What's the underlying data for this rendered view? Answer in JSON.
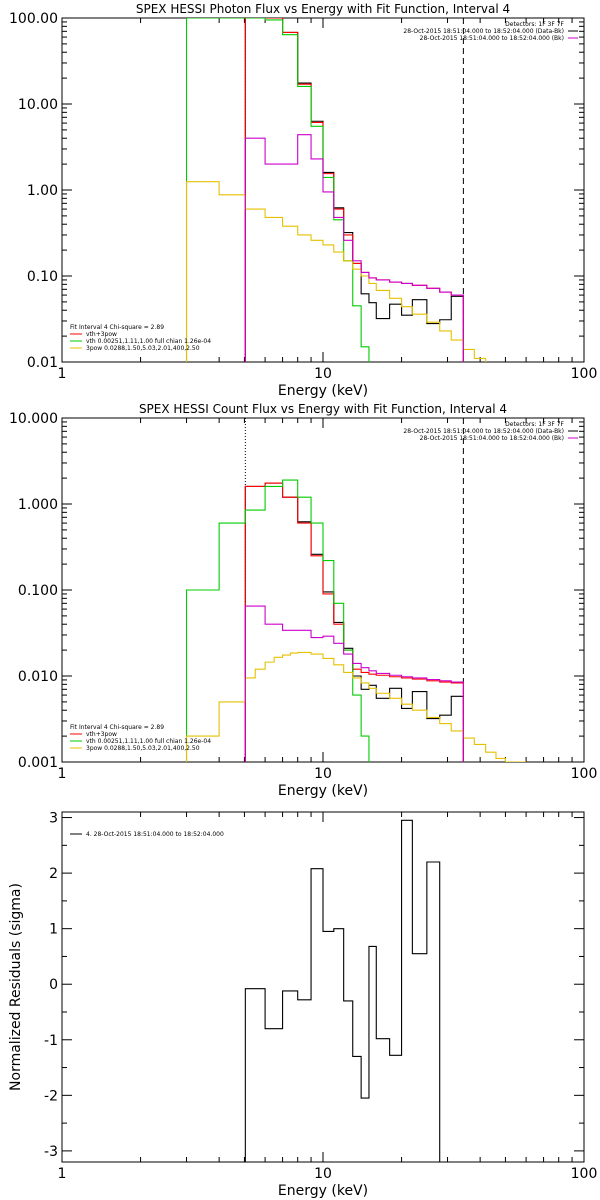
{
  "chart_data": [
    {
      "id": "photon",
      "type": "line",
      "title": "SPEX HESSI Photon Flux vs Energy with Fit Function, Interval 4",
      "xlabel": "Energy (keV)",
      "ylabel": "",
      "x_scale": "log",
      "y_scale": "log",
      "xlim": [
        1,
        100
      ],
      "ylim": [
        0.01,
        100
      ],
      "x_ticks": [
        {
          "v": 1,
          "label": "1"
        },
        {
          "v": 10,
          "label": "10"
        },
        {
          "v": 100,
          "label": "100"
        }
      ],
      "y_ticks": [
        {
          "v": 0.01,
          "label": "0.01"
        },
        {
          "v": 0.1,
          "label": "0.10"
        },
        {
          "v": 1,
          "label": "1.00"
        },
        {
          "v": 10,
          "label": "10.00"
        },
        {
          "v": 100,
          "label": "100.00"
        }
      ],
      "vlines": [
        {
          "x": 5.04,
          "style": "dotted",
          "color": "#000000"
        },
        {
          "x": 34.5,
          "style": "dashed",
          "color": "#000000"
        }
      ],
      "info_lines": [
        {
          "text": "Detectors: 1F 3F 7F",
          "color": "#000000"
        },
        {
          "text": "28-Oct-2015 18:51:04.000 to 18:52:04.000 (Data-Bk)",
          "color": "#000000"
        },
        {
          "text": "28-Oct-2015 18:51:04.000 to 18:52:04.000 (Bk)",
          "color": "#cc00cc"
        }
      ],
      "legend": [
        {
          "text": "Fit Interval 4   Chi-square = 2.89",
          "color": "#000000"
        },
        {
          "text": "vth+3pow",
          "color": "#ff0000"
        },
        {
          "text": "vth 0.00251,1.11,1.00  full chian 1.26e-04",
          "color": "#00cc00"
        },
        {
          "text": "3pow 0.0288,1.50,5.03,2.01,400,2.50",
          "color": "#e6c000"
        }
      ],
      "series": [
        {
          "key": "data",
          "color": "#000000",
          "edges": [
            5.04,
            6.0,
            7.0,
            8.0,
            9.0,
            10.0,
            11.0,
            12.0,
            13.0,
            14.0,
            15.0,
            16.0,
            18.0,
            20.0,
            22.0,
            25.0,
            28.0,
            31.0,
            34.5
          ],
          "values": [
            100,
            100,
            68,
            17.5,
            6.3,
            1.6,
            0.62,
            0.32,
            0.14,
            0.062,
            0.049,
            0.032,
            0.047,
            0.035,
            0.053,
            0.028,
            0.031,
            0.058
          ]
        },
        {
          "key": "total",
          "color": "#ff0000",
          "edges": [
            5.04,
            6.0,
            7.0,
            8.0,
            9.0,
            10.0,
            11.0,
            12.0,
            13.0,
            14.0,
            15.0,
            16.0,
            18.0,
            20.0,
            22.0,
            25.0,
            28.0,
            31.0,
            34.5
          ],
          "values": [
            100,
            100,
            68,
            17,
            6.1,
            1.55,
            0.6,
            0.3,
            0.14,
            0.11,
            0.095,
            0.09,
            0.085,
            0.082,
            0.078,
            0.072,
            0.065,
            0.06
          ]
        },
        {
          "key": "vth",
          "color": "#00cc00",
          "edges": [
            3.0,
            5.04,
            6.0,
            7.0,
            8.0,
            9.0,
            10.0,
            11.0,
            12.0,
            13.0,
            14.0,
            15.0
          ],
          "values": [
            100,
            100,
            95,
            64,
            16,
            5.5,
            1.4,
            0.45,
            0.15,
            0.045,
            0.015,
            0.01
          ]
        },
        {
          "key": "pow",
          "color": "#e6c000",
          "edges": [
            3.0,
            4.0,
            5.04,
            6.0,
            7.0,
            8.0,
            9.0,
            10.0,
            11.0,
            12.0,
            13.0,
            14.0,
            15.0,
            16.0,
            18.0,
            20.0,
            22.0,
            25.0,
            28.0,
            31.0,
            34.5,
            38.0,
            42.0
          ],
          "values": [
            1.25,
            0.88,
            0.6,
            0.48,
            0.38,
            0.3,
            0.26,
            0.23,
            0.19,
            0.15,
            0.12,
            0.1,
            0.082,
            0.068,
            0.055,
            0.044,
            0.036,
            0.029,
            0.023,
            0.018,
            0.014,
            0.011,
            0.01
          ]
        },
        {
          "key": "bk",
          "color": "#cc00cc",
          "edges": [
            5.04,
            6.0,
            7.0,
            8.0,
            9.0,
            10.0,
            11.0,
            12.0,
            13.0,
            14.0,
            15.0,
            16.0,
            18.0,
            20.0,
            22.0,
            25.0,
            28.0,
            31.0,
            34.5
          ],
          "values": [
            4.0,
            2.0,
            2.0,
            4.4,
            2.3,
            0.95,
            0.48,
            0.26,
            0.15,
            0.11,
            0.095,
            0.09,
            0.085,
            0.082,
            0.078,
            0.072,
            0.065,
            0.06
          ]
        }
      ]
    },
    {
      "id": "count",
      "type": "line",
      "title": "SPEX HESSI Count Flux vs Energy with Fit Function, Interval 4",
      "xlabel": "Energy (keV)",
      "ylabel": "",
      "x_scale": "log",
      "y_scale": "log",
      "xlim": [
        1,
        100
      ],
      "ylim": [
        0.001,
        10
      ],
      "x_ticks": [
        {
          "v": 1,
          "label": "1"
        },
        {
          "v": 10,
          "label": "10"
        },
        {
          "v": 100,
          "label": "100"
        }
      ],
      "y_ticks": [
        {
          "v": 0.001,
          "label": "0.001"
        },
        {
          "v": 0.01,
          "label": "0.010"
        },
        {
          "v": 0.1,
          "label": "0.100"
        },
        {
          "v": 1,
          "label": "1.000"
        },
        {
          "v": 10,
          "label": "10.000"
        }
      ],
      "vlines": [
        {
          "x": 5.04,
          "style": "dotted",
          "color": "#000000"
        },
        {
          "x": 34.5,
          "style": "dashed",
          "color": "#000000"
        }
      ],
      "info_lines": [
        {
          "text": "Detectors: 1F 3F 7F",
          "color": "#000000"
        },
        {
          "text": "28-Oct-2015 18:51:04.000 to 18:52:04.000 (Data-Bk)",
          "color": "#000000"
        },
        {
          "text": "28-Oct-2015 18:51:04.000 to 18:52:04.000 (Bk)",
          "color": "#cc00cc"
        }
      ],
      "legend": [
        {
          "text": "Fit Interval 4   Chi-square = 2.89",
          "color": "#000000"
        },
        {
          "text": "vth+3pow",
          "color": "#ff0000"
        },
        {
          "text": "vth 0.00251,1.11,1.00  full chian 1.26e-04",
          "color": "#00cc00"
        },
        {
          "text": "3pow 0.0288,1.50,5.03,2.01,400,2.50",
          "color": "#e6c000"
        }
      ],
      "series": [
        {
          "key": "data",
          "color": "#000000",
          "edges": [
            5.04,
            6.0,
            7.0,
            8.0,
            9.0,
            10.0,
            11.0,
            12.0,
            13.0,
            14.0,
            15.0,
            16.0,
            18.0,
            20.0,
            22.0,
            25.0,
            28.0,
            31.0,
            34.5
          ],
          "values": [
            1.6,
            1.75,
            1.2,
            0.62,
            0.26,
            0.095,
            0.042,
            0.021,
            0.01,
            0.007,
            0.0078,
            0.0055,
            0.0072,
            0.0042,
            0.0066,
            0.0032,
            0.0035,
            0.0058
          ]
        },
        {
          "key": "total",
          "color": "#ff0000",
          "edges": [
            5.04,
            6.0,
            7.0,
            8.0,
            9.0,
            10.0,
            11.0,
            12.0,
            13.0,
            14.0,
            15.0,
            16.0,
            18.0,
            20.0,
            22.0,
            25.0,
            28.0,
            31.0,
            34.5
          ],
          "values": [
            1.6,
            1.75,
            1.2,
            0.6,
            0.25,
            0.09,
            0.04,
            0.02,
            0.012,
            0.011,
            0.0105,
            0.0102,
            0.0098,
            0.0095,
            0.0092,
            0.0088,
            0.0085,
            0.0083
          ]
        },
        {
          "key": "vth",
          "color": "#00cc00",
          "edges": [
            3.0,
            4.0,
            5.04,
            6.0,
            7.0,
            8.0,
            9.0,
            10.0,
            11.0,
            12.0,
            13.0,
            14.0,
            15.0
          ],
          "values": [
            0.1,
            0.6,
            0.85,
            1.6,
            1.9,
            1.2,
            0.6,
            0.22,
            0.07,
            0.02,
            0.006,
            0.002,
            0.001
          ]
        },
        {
          "key": "pow",
          "color": "#e6c000",
          "edges": [
            3.0,
            4.0,
            5.04,
            5.5,
            6.0,
            6.5,
            7.0,
            7.5,
            8.0,
            9.0,
            10.0,
            11.0,
            12.0,
            13.0,
            14.0,
            15.0,
            16.0,
            18.0,
            20.0,
            22.0,
            25.0,
            28.0,
            31.0,
            34.5,
            38.0,
            42.0,
            46.0,
            50.0,
            55.0,
            60.0
          ],
          "values": [
            0.002,
            0.005,
            0.0095,
            0.012,
            0.0145,
            0.0165,
            0.0175,
            0.0185,
            0.0188,
            0.018,
            0.016,
            0.0135,
            0.011,
            0.0095,
            0.0083,
            0.0072,
            0.0063,
            0.0055,
            0.0047,
            0.004,
            0.0033,
            0.0028,
            0.0023,
            0.0019,
            0.0016,
            0.0013,
            0.0011,
            0.001,
            0.001
          ]
        },
        {
          "key": "bk",
          "color": "#cc00cc",
          "edges": [
            5.04,
            6.0,
            7.0,
            8.0,
            9.0,
            10.0,
            11.0,
            12.0,
            13.0,
            14.0,
            15.0,
            16.0,
            18.0,
            20.0,
            22.0,
            25.0,
            28.0,
            31.0,
            34.5
          ],
          "values": [
            0.065,
            0.04,
            0.034,
            0.034,
            0.028,
            0.029,
            0.024,
            0.018,
            0.014,
            0.0125,
            0.0115,
            0.0107,
            0.0102,
            0.0098,
            0.0095,
            0.0091,
            0.0088,
            0.0085
          ]
        }
      ]
    },
    {
      "id": "resid",
      "type": "line",
      "title": "",
      "xlabel": "Energy (keV)",
      "ylabel": "Normalized Residuals (sigma)",
      "x_scale": "log",
      "y_scale": "linear",
      "xlim": [
        1,
        100
      ],
      "ylim": [
        -3.2,
        3.1
      ],
      "x_ticks": [
        {
          "v": 1,
          "label": "1"
        },
        {
          "v": 10,
          "label": "10"
        },
        {
          "v": 100,
          "label": "100"
        }
      ],
      "y_ticks": [
        {
          "v": -3,
          "label": "-3"
        },
        {
          "v": -2,
          "label": "-2"
        },
        {
          "v": -1,
          "label": "-1"
        },
        {
          "v": 0,
          "label": "0"
        },
        {
          "v": 1,
          "label": "1"
        },
        {
          "v": 2,
          "label": "2"
        },
        {
          "v": 3,
          "label": "3"
        }
      ],
      "vlines": [],
      "info_lines": [],
      "legend": [
        {
          "text": "4. 28-Oct-2015 18:51:04.000 to 18:52:04.000",
          "color": "#000000"
        }
      ],
      "series": [
        {
          "key": "resid",
          "color": "#000000",
          "edges": [
            5.04,
            6.0,
            7.0,
            8.0,
            9.0,
            10.0,
            11.0,
            12.0,
            13.0,
            14.0,
            15.0,
            16.0,
            18.0,
            20.0,
            22.0,
            25.0,
            28.0,
            31.0,
            34.5
          ],
          "values": [
            -0.08,
            -0.8,
            -0.12,
            -0.28,
            2.08,
            0.95,
            1.0,
            -0.3,
            -1.3,
            -2.05,
            0.68,
            -0.98,
            -1.28,
            2.95,
            0.55,
            2.2,
            -3.2,
            -3.2
          ]
        }
      ]
    }
  ]
}
